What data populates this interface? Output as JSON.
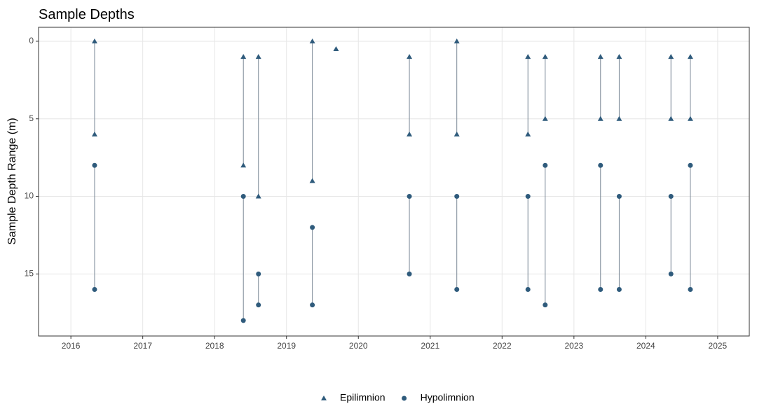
{
  "chart_data": {
    "type": "range-scatter",
    "title": "Sample Depths",
    "ylabel": "Sample Depth Range (m)",
    "xlim": [
      2015.55,
      2025.44
    ],
    "xticks": [
      2016,
      2017,
      2018,
      2019,
      2020,
      2021,
      2022,
      2023,
      2024,
      2025
    ],
    "ylim": [
      -0.9,
      19
    ],
    "yticks": [
      0,
      5,
      10,
      15
    ],
    "y_reversed": true,
    "grid": true,
    "legend": "bottom",
    "line_color": "#7a8896",
    "series": [
      {
        "name": "Epilimnion",
        "color": "#2f5b7c",
        "shape": "triangle",
        "x": [
          2016.33,
          2016.33,
          2018.4,
          2018.4,
          2018.61,
          2018.61,
          2019.36,
          2019.36,
          2019.69,
          2020.71,
          2020.71,
          2021.37,
          2021.37,
          2022.36,
          2022.36,
          2022.6,
          2022.6,
          2023.37,
          2023.37,
          2023.63,
          2023.63,
          2024.35,
          2024.35,
          2024.62,
          2024.62
        ],
        "values": [
          0,
          6,
          1,
          8,
          1,
          10,
          0,
          9,
          0.5,
          1,
          6,
          0,
          6,
          1,
          6,
          1,
          5,
          1,
          5,
          1,
          5,
          1,
          5,
          1,
          5
        ]
      },
      {
        "name": "Hypolimnion",
        "color": "#2f5b7c",
        "shape": "circle",
        "x": [
          2016.33,
          2016.33,
          2018.4,
          2018.4,
          2018.61,
          2018.61,
          2019.36,
          2019.36,
          2020.71,
          2020.71,
          2021.37,
          2021.37,
          2022.36,
          2022.36,
          2022.6,
          2022.6,
          2023.37,
          2023.37,
          2023.63,
          2023.63,
          2024.35,
          2024.35,
          2024.62,
          2024.62
        ],
        "values": [
          8,
          16,
          10,
          18,
          15,
          17,
          12,
          17,
          10,
          15,
          10,
          16,
          10,
          16,
          8,
          17,
          8,
          16,
          10,
          16,
          10,
          15,
          8,
          16
        ]
      }
    ]
  }
}
